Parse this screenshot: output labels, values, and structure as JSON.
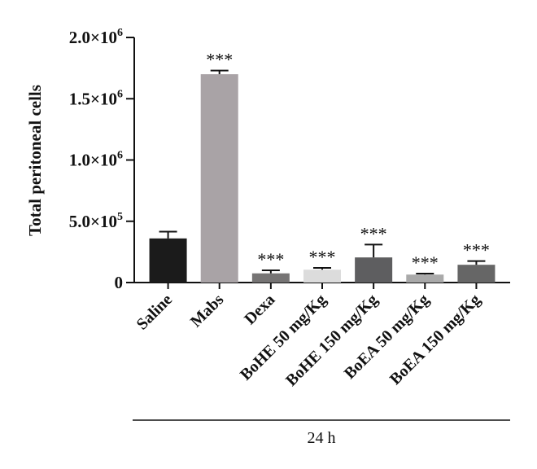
{
  "chart_data": {
    "type": "bar",
    "ylabel": "Total peritoneal cells",
    "ylim": [
      0,
      2000000
    ],
    "yticks": [
      {
        "value": 0,
        "base": "0",
        "exp": ""
      },
      {
        "value": 500000,
        "base": "5.0×10",
        "exp": "5"
      },
      {
        "value": 1000000,
        "base": "1.0×10",
        "exp": "6"
      },
      {
        "value": 1500000,
        "base": "1.5×10",
        "exp": "6"
      },
      {
        "value": 2000000,
        "base": "2.0×10",
        "exp": "6"
      }
    ],
    "categories": [
      "Saline",
      "Mabs",
      "Dexa",
      "BoHE 50 mg/Kg",
      "BoHE 150 mg/Kg",
      "BoEA 50 mg/Kg",
      "BoEA 150 mg/Kg"
    ],
    "values": [
      360000,
      1700000,
      75000,
      105000,
      205000,
      65000,
      145000
    ],
    "errors": [
      55000,
      30000,
      25000,
      15000,
      105000,
      8000,
      30000
    ],
    "significance": [
      "",
      "***",
      "***",
      "***",
      "***",
      "***",
      "***"
    ],
    "colors": [
      "#1b1b1b",
      "#a9a3a6",
      "#767474",
      "#dcdcdc",
      "#5e5e60",
      "#a9a9a9",
      "#666666"
    ],
    "group_label": "24 h",
    "grid": false,
    "legend": "none"
  }
}
